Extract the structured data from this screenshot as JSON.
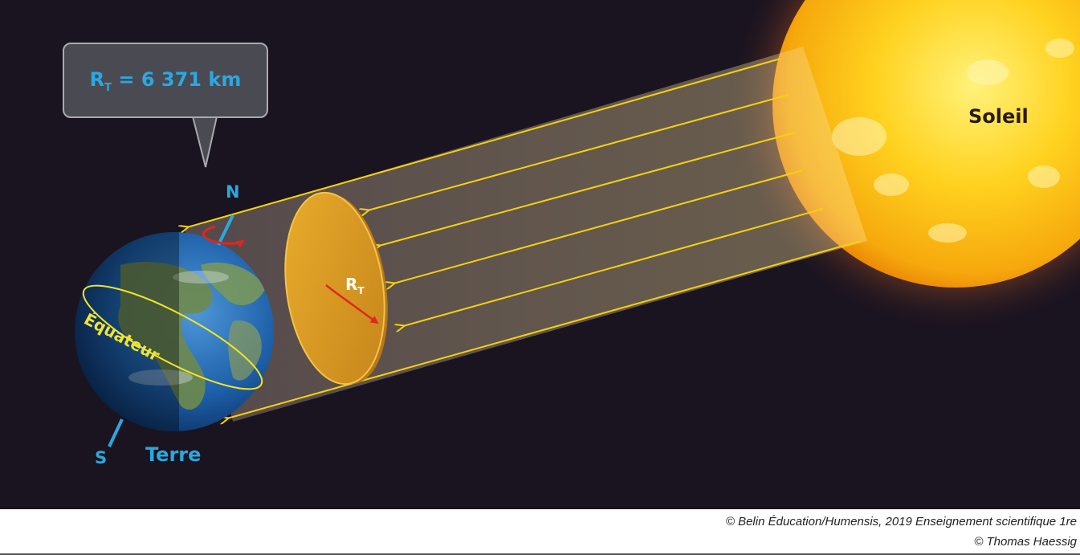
{
  "diagram": {
    "bubble": {
      "prefix": "R",
      "subscript": "T",
      "suffix": " = 6 371 km"
    },
    "sun_label": "Soleil",
    "earth_label": "Terre",
    "north_label": "N",
    "south_label": "S",
    "equator_label": "Équateur",
    "disc_label": {
      "prefix": "R",
      "subscript": "T"
    }
  },
  "footer": {
    "credit_line_1": "© Belin Éducation/Humensis, 2019 Enseignement scientifique 1re",
    "credit_line_2": "© Thomas Haessig"
  },
  "colors": {
    "background": "#1a1420",
    "rays": "#f5d20a",
    "label_blue": "#2aa8e0",
    "equator": "#f2e42a",
    "disc": "#d99a1e",
    "rotation_arrow": "#e0261e"
  }
}
